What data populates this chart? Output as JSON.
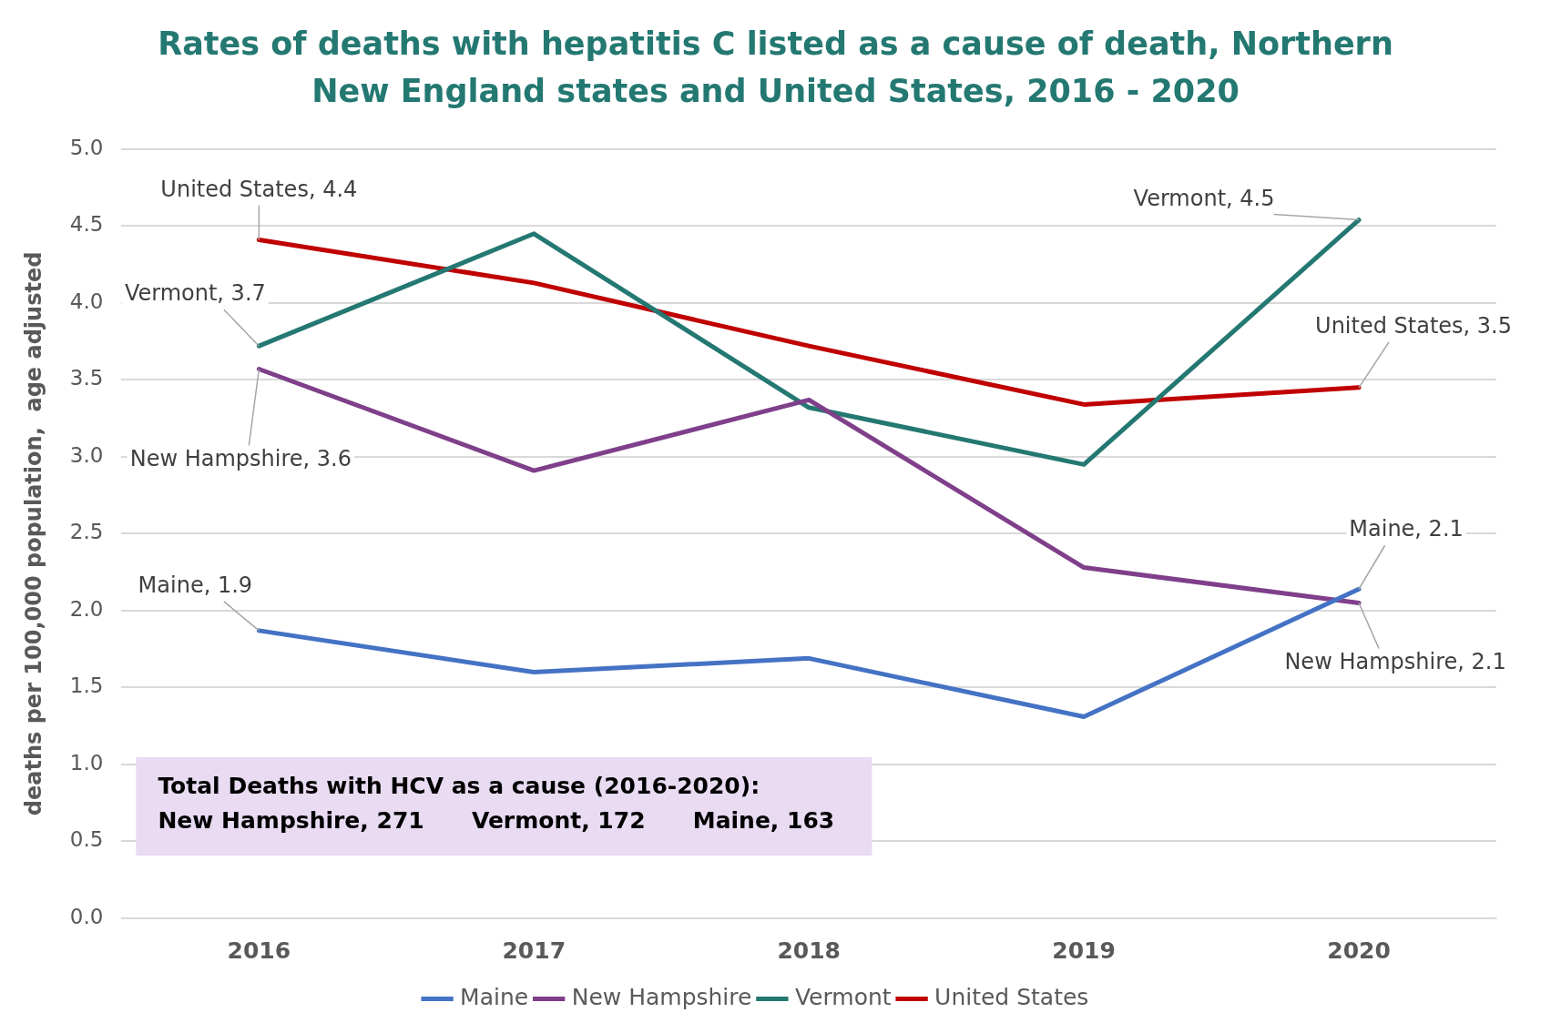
{
  "chart_data": {
    "type": "line",
    "title": "Rates of deaths with hepatitis C listed as a cause of death, Northern New England states and United States, 2016 - 2020",
    "ylabel": "deaths per 100,000 population,  age adjusted",
    "categories": [
      "2016",
      "2017",
      "2018",
      "2019",
      "2020"
    ],
    "series": [
      {
        "name": "Maine",
        "color": "#4472c4",
        "values": [
          1.87,
          1.6,
          1.69,
          1.31,
          2.14
        ]
      },
      {
        "name": "New Hampshire",
        "color": "#7f3f8a",
        "values": [
          3.57,
          2.91,
          3.37,
          2.28,
          2.05
        ]
      },
      {
        "name": "Vermont",
        "color": "#247872",
        "values": [
          3.72,
          4.45,
          3.32,
          2.95,
          4.54
        ]
      },
      {
        "name": "United States",
        "color": "#c00000",
        "values": [
          4.41,
          4.13,
          3.72,
          3.34,
          3.45
        ]
      }
    ],
    "ylim": [
      0,
      5
    ],
    "yticks": [
      {
        "value": 0,
        "label": "0.0"
      },
      {
        "value": 0.5,
        "label": "0.5"
      },
      {
        "value": 1,
        "label": "1.0"
      },
      {
        "value": 1.5,
        "label": "1.5"
      },
      {
        "value": 2,
        "label": "2.0"
      },
      {
        "value": 2.5,
        "label": "2.5"
      },
      {
        "value": 3,
        "label": "3.0"
      },
      {
        "value": 3.5,
        "label": "3.5"
      },
      {
        "value": 4,
        "label": "4.0"
      },
      {
        "value": 4.5,
        "label": "4.5"
      },
      {
        "value": 5,
        "label": "5.0"
      }
    ],
    "grid": "y",
    "legend": "bottom",
    "marker": "none",
    "line_style": "solid",
    "annotations": [
      {
        "text": "United States, 4.4",
        "x": "2016",
        "y": 4.41
      },
      {
        "text": "Vermont, 3.7",
        "x": "2016",
        "y": 3.72
      },
      {
        "text": "New Hampshire, 3.6",
        "x": "2016",
        "y": 3.57
      },
      {
        "text": "Maine, 1.9",
        "x": "2016",
        "y": 1.87
      },
      {
        "text": "Vermont, 4.5",
        "x": "2020",
        "y": 4.54
      },
      {
        "text": "United States, 3.5",
        "x": "2020",
        "y": 3.45
      },
      {
        "text": "Maine, 2.1",
        "x": "2020",
        "y": 2.14
      },
      {
        "text": "New Hampshire, 2.1",
        "x": "2020",
        "y": 2.05
      },
      "Total Deaths with HCV as a cause (2016-2020):",
      "New Hampshire, 271      Vermont, 172      Maine, 163"
    ]
  }
}
